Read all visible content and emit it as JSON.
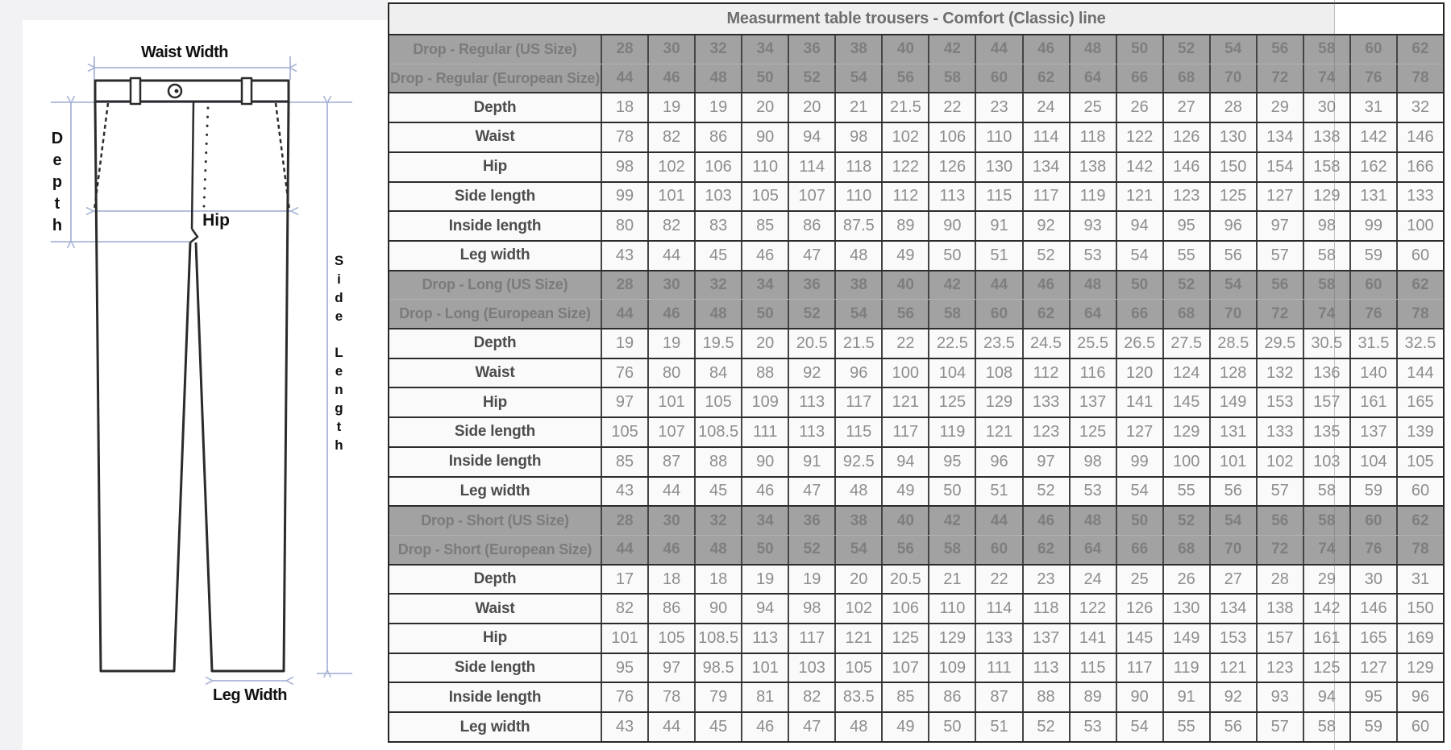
{
  "diagram": {
    "waist_width_label": "Waist Width",
    "depth_label": "Depth",
    "hip_label": "Hip",
    "side_length_words": [
      "Side",
      "Length"
    ],
    "leg_width_label": "Leg Width",
    "arrow_color": "#a9b5d8",
    "outline_color": "#2b2b2b"
  },
  "table": {
    "title": "Measurment table trousers - Comfort (Classic) line",
    "drop_row_bg": "#a2a2a2",
    "sections": [
      {
        "us_label": "Drop - Regular (US Size)",
        "eu_label": "Drop - Regular (European Size)",
        "us_sizes": [
          28,
          30,
          32,
          34,
          36,
          38,
          40,
          42,
          44,
          46,
          48,
          50,
          52,
          54,
          56,
          58,
          60,
          62
        ],
        "eu_sizes": [
          44,
          46,
          48,
          50,
          52,
          54,
          56,
          58,
          60,
          62,
          64,
          66,
          68,
          70,
          72,
          74,
          76,
          78
        ],
        "rows": [
          {
            "label": "Depth",
            "values": [
              18,
              19,
              19,
              20,
              20,
              21,
              21.5,
              22,
              23,
              24,
              25,
              26,
              27,
              28,
              29,
              30,
              31,
              32
            ]
          },
          {
            "label": "Waist",
            "values": [
              78,
              82,
              86,
              90,
              94,
              98,
              102,
              106,
              110,
              114,
              118,
              122,
              126,
              130,
              134,
              138,
              142,
              146
            ]
          },
          {
            "label": "Hip",
            "values": [
              98,
              102,
              106,
              110,
              114,
              118,
              122,
              126,
              130,
              134,
              138,
              142,
              146,
              150,
              154,
              158,
              162,
              166
            ]
          },
          {
            "label": "Side length",
            "values": [
              99,
              101,
              103,
              105,
              107,
              110,
              112,
              113,
              115,
              117,
              119,
              121,
              123,
              125,
              127,
              129,
              131,
              133
            ]
          },
          {
            "label": "Inside length",
            "values": [
              80,
              82,
              83,
              85,
              86,
              87.5,
              89,
              90,
              91,
              92,
              93,
              94,
              95,
              96,
              97,
              98,
              99,
              100
            ]
          },
          {
            "label": "Leg width",
            "values": [
              43,
              44,
              45,
              46,
              47,
              48,
              49,
              50,
              51,
              52,
              53,
              54,
              55,
              56,
              57,
              58,
              59,
              60
            ]
          }
        ]
      },
      {
        "us_label": "Drop - Long (US Size)",
        "eu_label": "Drop - Long (European Size)",
        "us_sizes": [
          28,
          30,
          32,
          34,
          36,
          38,
          40,
          42,
          44,
          46,
          48,
          50,
          52,
          54,
          56,
          58,
          60,
          62
        ],
        "eu_sizes": [
          44,
          46,
          48,
          50,
          52,
          54,
          56,
          58,
          60,
          62,
          64,
          66,
          68,
          70,
          72,
          74,
          76,
          78
        ],
        "rows": [
          {
            "label": "Depth",
            "values": [
              19,
              19,
              19.5,
              20,
              20.5,
              21.5,
              22,
              22.5,
              23.5,
              24.5,
              25.5,
              26.5,
              27.5,
              28.5,
              29.5,
              30.5,
              31.5,
              32.5
            ]
          },
          {
            "label": "Waist",
            "values": [
              76,
              80,
              84,
              88,
              92,
              96,
              100,
              104,
              108,
              112,
              116,
              120,
              124,
              128,
              132,
              136,
              140,
              144
            ]
          },
          {
            "label": "Hip",
            "values": [
              97,
              101,
              105,
              109,
              113,
              117,
              121,
              125,
              129,
              133,
              137,
              141,
              145,
              149,
              153,
              157,
              161,
              165
            ]
          },
          {
            "label": "Side length",
            "values": [
              105,
              107,
              108.5,
              111,
              113,
              115,
              117,
              119,
              121,
              123,
              125,
              127,
              129,
              131,
              133,
              135,
              137,
              139
            ]
          },
          {
            "label": "Inside length",
            "values": [
              85,
              87,
              88,
              90,
              91,
              92.5,
              94,
              95,
              96,
              97,
              98,
              99,
              100,
              101,
              102,
              103,
              104,
              105
            ]
          },
          {
            "label": "Leg width",
            "values": [
              43,
              44,
              45,
              46,
              47,
              48,
              49,
              50,
              51,
              52,
              53,
              54,
              55,
              56,
              57,
              58,
              59,
              60
            ]
          }
        ]
      },
      {
        "us_label": "Drop - Short (US Size)",
        "eu_label": "Drop - Short (European Size)",
        "us_sizes": [
          28,
          30,
          32,
          34,
          36,
          38,
          40,
          42,
          44,
          46,
          48,
          50,
          52,
          54,
          56,
          58,
          60,
          62
        ],
        "eu_sizes": [
          44,
          46,
          48,
          50,
          52,
          54,
          56,
          58,
          60,
          62,
          64,
          66,
          68,
          70,
          72,
          74,
          76,
          78
        ],
        "rows": [
          {
            "label": "Depth",
            "values": [
              17,
              18,
              18,
              19,
              19,
              20,
              20.5,
              21,
              22,
              23,
              24,
              25,
              26,
              27,
              28,
              29,
              30,
              31
            ]
          },
          {
            "label": "Waist",
            "values": [
              82,
              86,
              90,
              94,
              98,
              102,
              106,
              110,
              114,
              118,
              122,
              126,
              130,
              134,
              138,
              142,
              146,
              150
            ]
          },
          {
            "label": "Hip",
            "values": [
              101,
              105,
              108.5,
              113,
              117,
              121,
              125,
              129,
              133,
              137,
              141,
              145,
              149,
              153,
              157,
              161,
              165,
              169
            ]
          },
          {
            "label": "Side length",
            "values": [
              95,
              97,
              98.5,
              101,
              103,
              105,
              107,
              109,
              111,
              113,
              115,
              117,
              119,
              121,
              123,
              125,
              127,
              129
            ]
          },
          {
            "label": "Inside length",
            "values": [
              76,
              78,
              79,
              81,
              82,
              83.5,
              85,
              86,
              87,
              88,
              89,
              90,
              91,
              92,
              93,
              94,
              95,
              96
            ]
          },
          {
            "label": "Leg width",
            "values": [
              43,
              44,
              45,
              46,
              47,
              48,
              49,
              50,
              51,
              52,
              53,
              54,
              55,
              56,
              57,
              58,
              59,
              60
            ]
          }
        ]
      }
    ]
  }
}
